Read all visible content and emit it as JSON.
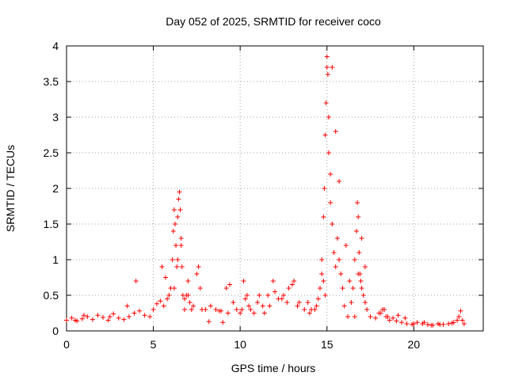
{
  "chart_data": {
    "type": "scatter",
    "title": "Day 052 of 2025, SRMTID for receiver coco",
    "xlabel": "GPS time / hours",
    "ylabel": "SRMTID / TECUs",
    "xlim": [
      0,
      24
    ],
    "ylim": [
      0,
      4
    ],
    "x_ticks": [
      0,
      5,
      10,
      15,
      20
    ],
    "x_tick_labels": [
      "0",
      "5",
      "10",
      "15",
      "20"
    ],
    "y_ticks": [
      0,
      0.5,
      1,
      1.5,
      2,
      2.5,
      3,
      3.5,
      4
    ],
    "y_tick_labels": [
      "0",
      "0.5",
      "1",
      "1.5",
      "2",
      "2.5",
      "3",
      "3.5",
      "4"
    ],
    "grid": true,
    "marker": "plus",
    "color": "#ff0000",
    "series": [
      {
        "name": "SRMTID",
        "x": [
          0.0,
          0.3,
          0.6,
          0.9,
          1.2,
          1.5,
          1.8,
          2.1,
          2.4,
          2.7,
          3.0,
          3.3,
          3.6,
          3.9,
          4.2,
          4.5,
          4.8,
          5.0,
          5.2,
          5.4,
          5.6,
          5.8,
          6.0,
          6.1,
          6.15,
          6.2,
          6.25,
          6.3,
          6.35,
          6.4,
          6.45,
          6.5,
          6.55,
          6.6,
          6.65,
          6.7,
          6.8,
          6.9,
          7.0,
          7.1,
          7.3,
          7.5,
          7.6,
          7.7,
          7.8,
          8.0,
          8.3,
          8.6,
          8.9,
          9.2,
          9.4,
          9.6,
          9.8,
          10.0,
          10.2,
          10.4,
          10.6,
          10.8,
          11.0,
          11.3,
          11.6,
          11.9,
          12.2,
          12.5,
          12.8,
          13.1,
          13.4,
          13.7,
          14.0,
          14.3,
          14.5,
          14.6,
          14.7,
          14.8,
          14.85,
          14.9,
          14.95,
          15.0,
          15.05,
          15.1,
          15.2,
          15.3,
          15.4,
          15.5,
          15.6,
          15.7,
          15.8,
          15.9,
          16.0,
          16.2,
          16.4,
          16.5,
          16.6,
          16.7,
          16.75,
          16.8,
          16.85,
          16.9,
          16.95,
          17.0,
          17.1,
          17.2,
          17.3,
          17.5,
          17.8,
          18.0,
          18.2,
          18.4,
          18.6,
          18.8,
          19.0,
          19.3,
          19.6,
          19.9,
          20.2,
          20.5,
          20.8,
          21.1,
          21.4,
          21.7,
          22.0,
          22.3,
          22.5,
          22.6,
          22.7,
          22.8,
          22.9,
          5.5,
          5.7,
          5.9,
          6.2,
          6.4,
          6.6,
          6.8,
          7.0,
          7.2,
          14.7,
          14.8,
          14.9,
          15.0,
          15.1,
          15.2,
          15.3,
          15.5,
          15.7,
          16.1,
          16.3,
          16.6,
          16.8,
          17.0,
          17.2,
          4.0,
          3.5,
          2.5,
          1.0,
          0.5,
          8.2,
          8.8,
          9.0,
          9.3,
          10.1,
          10.3,
          10.5,
          11.1,
          11.4,
          11.7,
          12.0,
          12.4,
          12.7,
          13.0,
          13.3,
          13.9,
          14.1,
          14.4,
          18.1,
          18.3,
          18.5,
          19.1,
          19.5,
          20.0,
          20.6,
          21.0,
          21.5,
          22.2
        ],
        "y": [
          0.15,
          0.18,
          0.14,
          0.17,
          0.2,
          0.16,
          0.22,
          0.19,
          0.15,
          0.24,
          0.18,
          0.16,
          0.2,
          0.25,
          0.28,
          0.22,
          0.2,
          0.3,
          0.38,
          0.42,
          0.35,
          0.45,
          0.6,
          1.0,
          1.4,
          1.7,
          1.5,
          1.2,
          0.9,
          1.6,
          1.85,
          1.95,
          1.7,
          1.3,
          0.9,
          0.5,
          0.3,
          0.5,
          0.7,
          0.4,
          0.35,
          0.8,
          0.9,
          0.6,
          0.3,
          0.3,
          0.35,
          0.3,
          0.28,
          0.6,
          0.65,
          0.4,
          0.3,
          0.25,
          0.7,
          0.5,
          0.3,
          0.25,
          0.4,
          0.35,
          0.5,
          0.7,
          0.45,
          0.5,
          0.6,
          0.7,
          0.4,
          0.3,
          0.25,
          0.3,
          0.45,
          0.6,
          0.8,
          1.6,
          2.0,
          2.75,
          3.2,
          3.85,
          3.6,
          3.0,
          2.2,
          1.5,
          1.1,
          0.9,
          1.3,
          1.0,
          0.8,
          0.6,
          0.35,
          0.2,
          0.4,
          0.6,
          1.0,
          1.4,
          1.8,
          1.6,
          1.1,
          0.8,
          0.7,
          0.6,
          0.5,
          0.4,
          0.3,
          0.2,
          0.18,
          0.25,
          0.3,
          0.2,
          0.15,
          0.18,
          0.14,
          0.12,
          0.1,
          0.09,
          0.12,
          0.1,
          0.09,
          0.08,
          0.1,
          0.09,
          0.1,
          0.12,
          0.15,
          0.2,
          0.28,
          0.15,
          0.1,
          0.9,
          0.75,
          0.5,
          0.6,
          1.0,
          1.2,
          0.45,
          0.5,
          0.3,
          1.0,
          0.7,
          0.5,
          3.7,
          2.5,
          1.8,
          3.7,
          2.8,
          2.1,
          1.2,
          0.7,
          0.2,
          0.8,
          1.3,
          0.9,
          0.7,
          0.35,
          0.2,
          0.22,
          0.15,
          0.13,
          0.28,
          0.12,
          0.25,
          0.3,
          0.45,
          0.35,
          0.5,
          0.25,
          0.35,
          0.55,
          0.45,
          0.4,
          0.65,
          0.35,
          0.4,
          0.3,
          0.35,
          0.25,
          0.3,
          0.2,
          0.22,
          0.18,
          0.1,
          0.12,
          0.08,
          0.09,
          0.11
        ]
      }
    ]
  }
}
